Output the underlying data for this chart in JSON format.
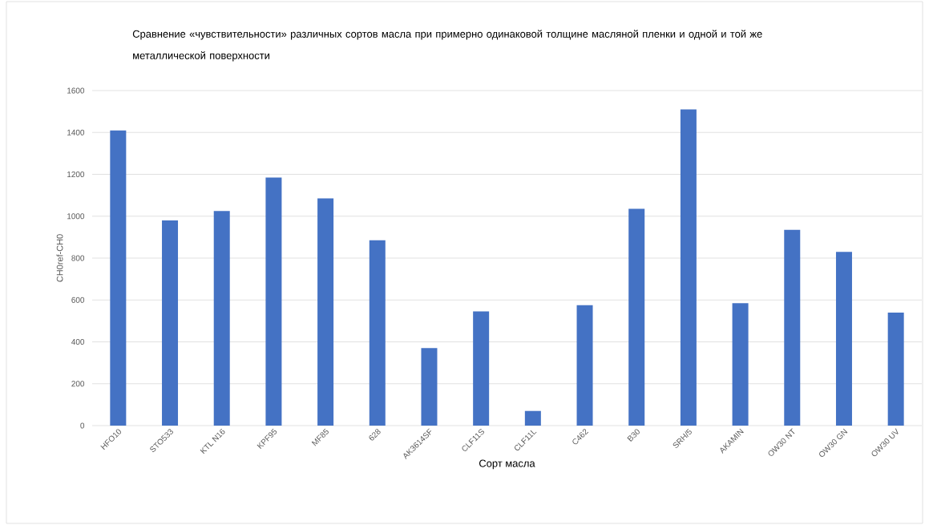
{
  "chart_data": {
    "type": "bar",
    "title": "Сравнение «чувствительности» различных сортов масла при примерно одинаковой толщине масляной пленки и одной и той же металлической поверхности",
    "xlabel": "Сорт масла",
    "ylabel": "CH0ref-CH0",
    "categories": [
      "HFO10",
      "STO533",
      "KTL N16",
      "KPF95",
      "MF85",
      "628",
      "AK3614SF",
      "CLF11S",
      "CLF11L",
      "C462",
      "B30",
      "SRH/5",
      "AKAMIN",
      "OW30 NT",
      "OW30 GN",
      "OW30 UV"
    ],
    "values": [
      1410,
      980,
      1025,
      1185,
      1085,
      885,
      370,
      545,
      70,
      575,
      1035,
      1510,
      585,
      935,
      830,
      540
    ],
    "color": "#4472c4",
    "ylim": [
      0,
      1600
    ],
    "yticks": [
      0,
      200,
      400,
      600,
      800,
      1000,
      1200,
      1400,
      1600
    ],
    "grid": "y"
  }
}
